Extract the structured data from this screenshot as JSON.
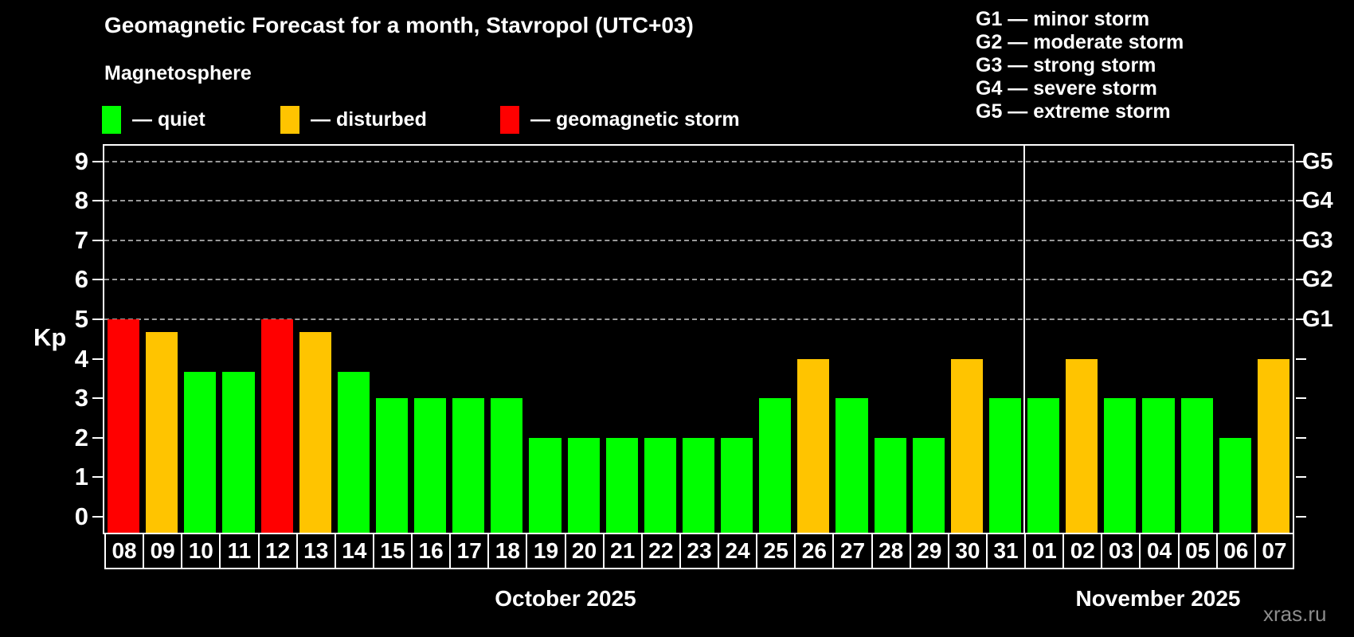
{
  "header": {
    "title": "Geomagnetic Forecast for a month, Stavropol (UTC+03)",
    "subtitle": "Magnetosphere",
    "legend": [
      {
        "key": "quiet",
        "label": "— quiet",
        "color": "#00ff00"
      },
      {
        "key": "disturbed",
        "label": "— disturbed",
        "color": "#ffc400"
      },
      {
        "key": "storm",
        "label": "— geomagnetic storm",
        "color": "#ff0000"
      }
    ],
    "g_scale_legend": [
      "G1 — minor storm",
      "G2 — moderate storm",
      "G3 — strong storm",
      "G4 — severe storm",
      "G5 — extreme storm"
    ]
  },
  "colors": {
    "quiet": "#00ff00",
    "disturbed": "#ffc400",
    "storm": "#ff0000",
    "axis": "#ffffff",
    "grid": "#9a9a9a",
    "background": "#000000",
    "watermark": "#8c8c8c"
  },
  "watermark": "xras.ru",
  "chart_data": {
    "type": "bar",
    "title": "Geomagnetic Forecast for a month, Stavropol (UTC+03)",
    "ylabel": "Kp",
    "ylim": [
      0,
      9
    ],
    "yticks": [
      0,
      1,
      2,
      3,
      4,
      5,
      6,
      7,
      8,
      9
    ],
    "gridlines_at_kp": [
      5,
      6,
      7,
      8,
      9
    ],
    "grid": "dashed",
    "right_axis_levels": [
      {
        "kp": 5,
        "label": "G1"
      },
      {
        "kp": 6,
        "label": "G2"
      },
      {
        "kp": 7,
        "label": "G3"
      },
      {
        "kp": 8,
        "label": "G4"
      },
      {
        "kp": 9,
        "label": "G5"
      }
    ],
    "months": [
      {
        "label": "October 2025",
        "days": 24
      },
      {
        "label": "November 2025",
        "days": 7
      }
    ],
    "bars": [
      {
        "day": "08",
        "kp": 5.0,
        "status": "storm"
      },
      {
        "day": "09",
        "kp": 4.67,
        "status": "disturbed"
      },
      {
        "day": "10",
        "kp": 3.67,
        "status": "quiet"
      },
      {
        "day": "11",
        "kp": 3.67,
        "status": "quiet"
      },
      {
        "day": "12",
        "kp": 5.0,
        "status": "storm"
      },
      {
        "day": "13",
        "kp": 4.67,
        "status": "disturbed"
      },
      {
        "day": "14",
        "kp": 3.67,
        "status": "quiet"
      },
      {
        "day": "15",
        "kp": 3.0,
        "status": "quiet"
      },
      {
        "day": "16",
        "kp": 3.0,
        "status": "quiet"
      },
      {
        "day": "17",
        "kp": 3.0,
        "status": "quiet"
      },
      {
        "day": "18",
        "kp": 3.0,
        "status": "quiet"
      },
      {
        "day": "19",
        "kp": 2.0,
        "status": "quiet"
      },
      {
        "day": "20",
        "kp": 2.0,
        "status": "quiet"
      },
      {
        "day": "21",
        "kp": 2.0,
        "status": "quiet"
      },
      {
        "day": "22",
        "kp": 2.0,
        "status": "quiet"
      },
      {
        "day": "23",
        "kp": 2.0,
        "status": "quiet"
      },
      {
        "day": "24",
        "kp": 2.0,
        "status": "quiet"
      },
      {
        "day": "25",
        "kp": 3.0,
        "status": "quiet"
      },
      {
        "day": "26",
        "kp": 4.0,
        "status": "disturbed"
      },
      {
        "day": "27",
        "kp": 3.0,
        "status": "quiet"
      },
      {
        "day": "28",
        "kp": 2.0,
        "status": "quiet"
      },
      {
        "day": "29",
        "kp": 2.0,
        "status": "quiet"
      },
      {
        "day": "30",
        "kp": 4.0,
        "status": "disturbed"
      },
      {
        "day": "31",
        "kp": 3.0,
        "status": "quiet"
      },
      {
        "day": "01",
        "kp": 3.0,
        "status": "quiet"
      },
      {
        "day": "02",
        "kp": 4.0,
        "status": "disturbed"
      },
      {
        "day": "03",
        "kp": 3.0,
        "status": "quiet"
      },
      {
        "day": "04",
        "kp": 3.0,
        "status": "quiet"
      },
      {
        "day": "05",
        "kp": 3.0,
        "status": "quiet"
      },
      {
        "day": "06",
        "kp": 2.0,
        "status": "quiet"
      },
      {
        "day": "07",
        "kp": 4.0,
        "status": "disturbed"
      }
    ]
  }
}
